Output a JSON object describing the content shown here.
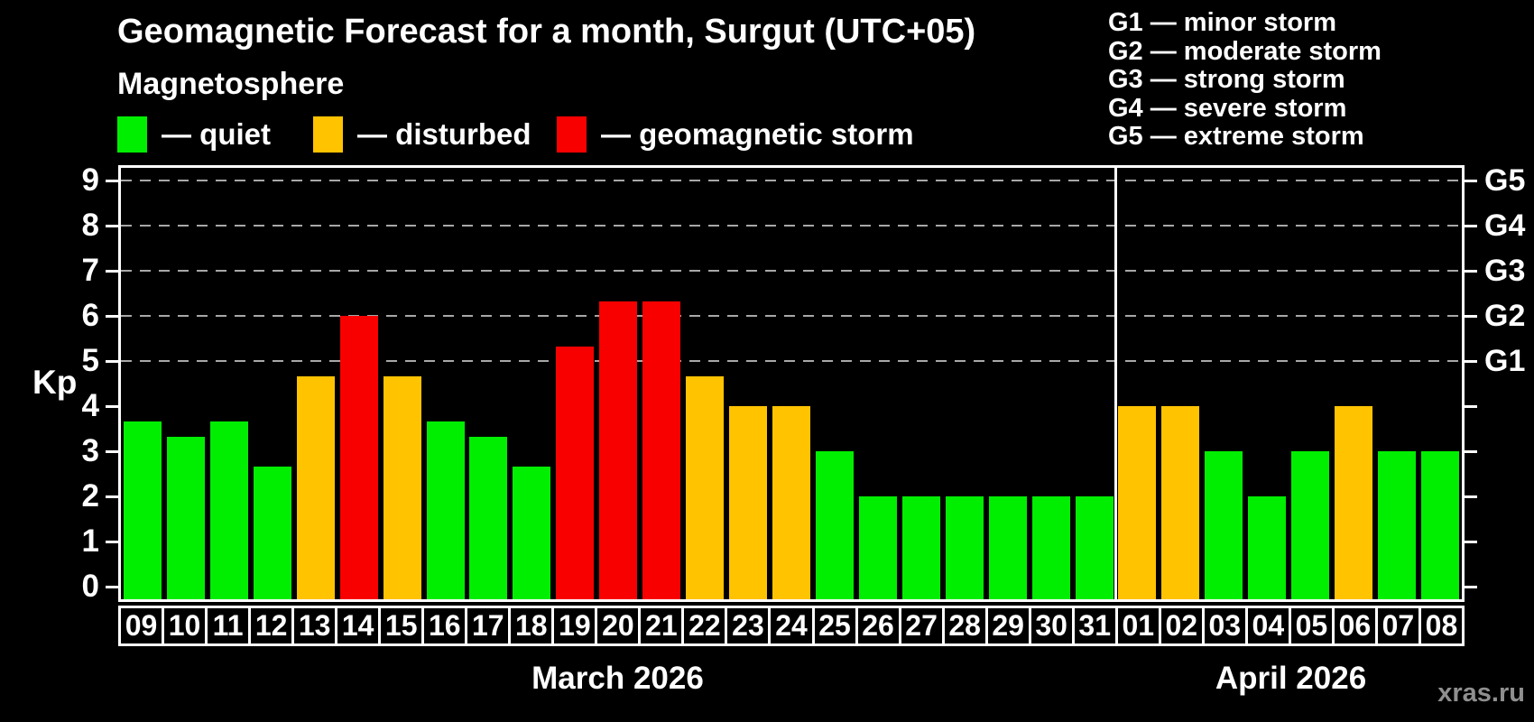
{
  "header": {
    "title": "Geomagnetic Forecast for a month, Surgut (UTC+05)",
    "subtitle": "Magnetosphere"
  },
  "legend": {
    "items": [
      {
        "key": "quiet",
        "label": "— quiet",
        "color": "#00ee00"
      },
      {
        "key": "disturbed",
        "label": "— disturbed",
        "color": "#ffc300"
      },
      {
        "key": "storm",
        "label": "— geomagnetic storm",
        "color": "#f80000"
      }
    ]
  },
  "g_scale_legend": {
    "lines": [
      "G1 — minor storm",
      "G2 — moderate storm",
      "G3 — strong storm",
      "G4 — severe storm",
      "G5 — extreme storm"
    ]
  },
  "axes": {
    "y_label": "Kp",
    "y_ticks": [
      0,
      1,
      2,
      3,
      4,
      5,
      6,
      7,
      8,
      9
    ],
    "right_labels": [
      {
        "kp": 5,
        "label": "G1"
      },
      {
        "kp": 6,
        "label": "G2"
      },
      {
        "kp": 7,
        "label": "G3"
      },
      {
        "kp": 8,
        "label": "G4"
      },
      {
        "kp": 9,
        "label": "G5"
      }
    ]
  },
  "months": {
    "march": "March 2026",
    "april": "April 2026"
  },
  "watermark": "xras.ru",
  "chart_data": {
    "type": "bar",
    "title": "Geomagnetic Forecast for a month, Surgut (UTC+05)",
    "ylabel": "Kp",
    "ylim": [
      0,
      9.4
    ],
    "grid": "dashed horizontal at Kp 5..9 (G1..G5)",
    "legend_position": "top-left",
    "status_colors": {
      "quiet": "#00ee00",
      "disturbed": "#ffc300",
      "storm": "#f80000"
    },
    "march_slots": 23,
    "bars": [
      {
        "date": "09",
        "month": "March 2026",
        "kp": 3.67,
        "status": "quiet"
      },
      {
        "date": "10",
        "month": "March 2026",
        "kp": 3.33,
        "status": "quiet"
      },
      {
        "date": "11",
        "month": "March 2026",
        "kp": 3.67,
        "status": "quiet"
      },
      {
        "date": "12",
        "month": "March 2026",
        "kp": 2.67,
        "status": "quiet"
      },
      {
        "date": "13",
        "month": "March 2026",
        "kp": 4.67,
        "status": "disturbed"
      },
      {
        "date": "14",
        "month": "March 2026",
        "kp": 6.0,
        "status": "storm"
      },
      {
        "date": "15",
        "month": "March 2026",
        "kp": 4.67,
        "status": "disturbed"
      },
      {
        "date": "16",
        "month": "March 2026",
        "kp": 3.67,
        "status": "quiet"
      },
      {
        "date": "17",
        "month": "March 2026",
        "kp": 3.33,
        "status": "quiet"
      },
      {
        "date": "18",
        "month": "March 2026",
        "kp": 2.67,
        "status": "quiet"
      },
      {
        "date": "19",
        "month": "March 2026",
        "kp": 5.33,
        "status": "storm"
      },
      {
        "date": "20",
        "month": "March 2026",
        "kp": 6.33,
        "status": "storm"
      },
      {
        "date": "21",
        "month": "March 2026",
        "kp": 6.33,
        "status": "storm"
      },
      {
        "date": "22",
        "month": "March 2026",
        "kp": 4.67,
        "status": "disturbed"
      },
      {
        "date": "23",
        "month": "March 2026",
        "kp": 4.0,
        "status": "disturbed"
      },
      {
        "date": "24",
        "month": "March 2026",
        "kp": 4.0,
        "status": "disturbed"
      },
      {
        "date": "25",
        "month": "March 2026",
        "kp": 3.0,
        "status": "quiet"
      },
      {
        "date": "26",
        "month": "March 2026",
        "kp": 2.0,
        "status": "quiet"
      },
      {
        "date": "27",
        "month": "March 2026",
        "kp": 2.0,
        "status": "quiet"
      },
      {
        "date": "28",
        "month": "March 2026",
        "kp": 2.0,
        "status": "quiet"
      },
      {
        "date": "29",
        "month": "March 2026",
        "kp": 2.0,
        "status": "quiet"
      },
      {
        "date": "30",
        "month": "March 2026",
        "kp": 2.0,
        "status": "quiet"
      },
      {
        "date": "31",
        "month": "March 2026",
        "kp": 2.0,
        "status": "quiet"
      },
      {
        "date": "01",
        "month": "April 2026",
        "kp": 4.0,
        "status": "disturbed"
      },
      {
        "date": "02",
        "month": "April 2026",
        "kp": 4.0,
        "status": "disturbed"
      },
      {
        "date": "03",
        "month": "April 2026",
        "kp": 3.0,
        "status": "quiet"
      },
      {
        "date": "04",
        "month": "April 2026",
        "kp": 2.0,
        "status": "quiet"
      },
      {
        "date": "05",
        "month": "April 2026",
        "kp": 3.0,
        "status": "quiet"
      },
      {
        "date": "06",
        "month": "April 2026",
        "kp": 4.0,
        "status": "disturbed"
      },
      {
        "date": "07",
        "month": "April 2026",
        "kp": 3.0,
        "status": "quiet"
      },
      {
        "date": "08",
        "month": "April 2026",
        "kp": 3.0,
        "status": "quiet"
      }
    ]
  }
}
